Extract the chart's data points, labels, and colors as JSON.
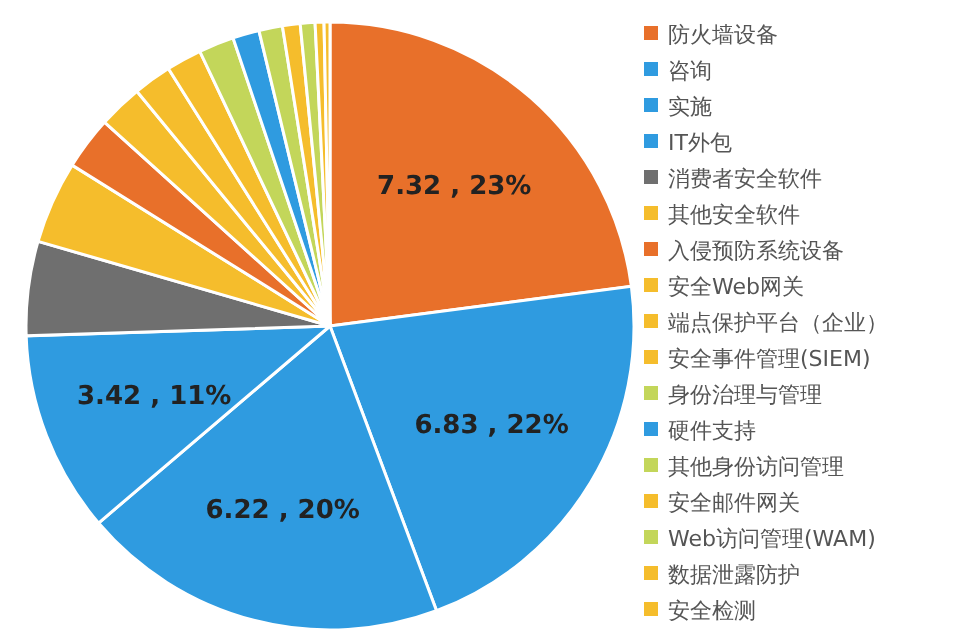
{
  "chart_data": {
    "type": "pie",
    "categories": [
      "防火墙设备",
      "咨询",
      "实施",
      "IT外包",
      "消费者安全软件",
      "其他安全软件",
      "入侵预防系统设备",
      "安全Web网关",
      "端点保护平台（企业）",
      "安全事件管理(SIEM)",
      "身份治理与管理",
      "硬件支持",
      "其他身份访问管理",
      "安全邮件网关",
      "Web访问管理(WAM)",
      "数据泄露防护",
      "安全检测"
    ],
    "values": [
      7.32,
      6.83,
      6.22,
      3.42,
      1.6,
      1.4,
      0.9,
      0.75,
      0.65,
      0.6,
      0.6,
      0.45,
      0.4,
      0.3,
      0.25,
      0.15,
      0.1
    ],
    "value_labels": [
      "7.32 , 23%",
      "6.83 , 22%",
      "6.22 , 20%",
      "3.42 , 11%",
      null,
      null,
      null,
      null,
      null,
      null,
      null,
      null,
      null,
      null,
      null,
      null,
      null
    ],
    "colors": [
      "#e8702a",
      "#2f9be0",
      "#2f9be0",
      "#2f9be0",
      "#6f6f6f",
      "#f5bd2c",
      "#e8702a",
      "#f5bd2c",
      "#f5bd2c",
      "#f5bd2c",
      "#c3d65a",
      "#2f9be0",
      "#c3d65a",
      "#f5bd2c",
      "#c3d65a",
      "#f5bd2c",
      "#f5bd2c"
    ],
    "legend": "right"
  }
}
